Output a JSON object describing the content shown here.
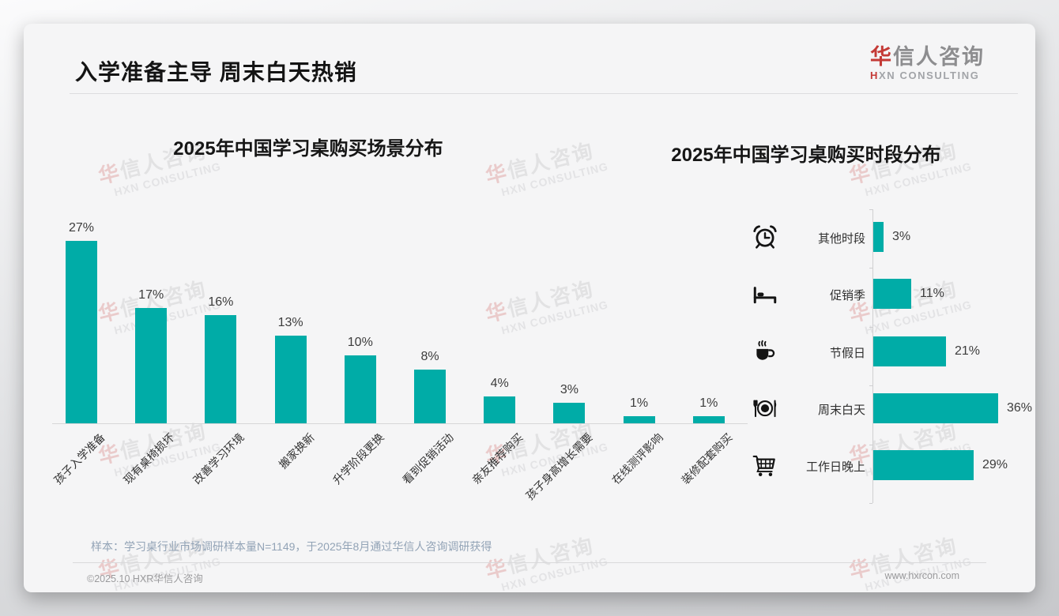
{
  "header": {
    "title": "入学准备主导 周末白天热销",
    "logo": {
      "zh_first": "华",
      "zh_rest": "信人咨询",
      "en_first": "H",
      "en_rest": "XN CONSULTING"
    }
  },
  "watermark": {
    "zh_first": "华",
    "zh_rest": "信人咨询",
    "en": "HXN CONSULTING"
  },
  "colors": {
    "teal": "#00ACA7",
    "logo_red": "#C43A36",
    "note": "#92A3B6"
  },
  "chart_data": [
    {
      "type": "bar",
      "orientation": "vertical",
      "title": "2025年中国学习桌购买场景分布",
      "categories": [
        "孩子入学准备",
        "现有桌椅损坏",
        "改善学习环境",
        "搬家换新",
        "升学阶段更换",
        "看到促销活动",
        "亲友推荐购买",
        "孩子身高增长需要",
        "在线测评影响",
        "装修配套购买"
      ],
      "values": [
        27,
        17,
        16,
        13,
        10,
        8,
        4,
        3,
        1,
        1
      ],
      "unit": "%",
      "ylim": [
        0,
        30
      ],
      "grid": false,
      "bar_color": "#00ACA7"
    },
    {
      "type": "bar",
      "orientation": "horizontal",
      "title": "2025年中国学习桌购买时段分布",
      "categories": [
        "其他时段",
        "促销季",
        "节假日",
        "周末白天",
        "工作日晚上"
      ],
      "values": [
        3,
        11,
        21,
        36,
        29
      ],
      "icons": [
        "alarm-clock-icon",
        "bed-icon",
        "coffee-icon",
        "dining-icon",
        "shopping-cart-icon"
      ],
      "unit": "%",
      "xlim": [
        0,
        40
      ],
      "grid": false,
      "bar_color": "#00ACA7"
    }
  ],
  "footnote": {
    "sample": "样本：学习桌行业市场调研样本量N=1149，于2025年8月通过华信人咨询调研获得"
  },
  "footer": {
    "copyright": "©2025.10 HXR华信人咨询",
    "website": "www.hxrcon.com"
  }
}
